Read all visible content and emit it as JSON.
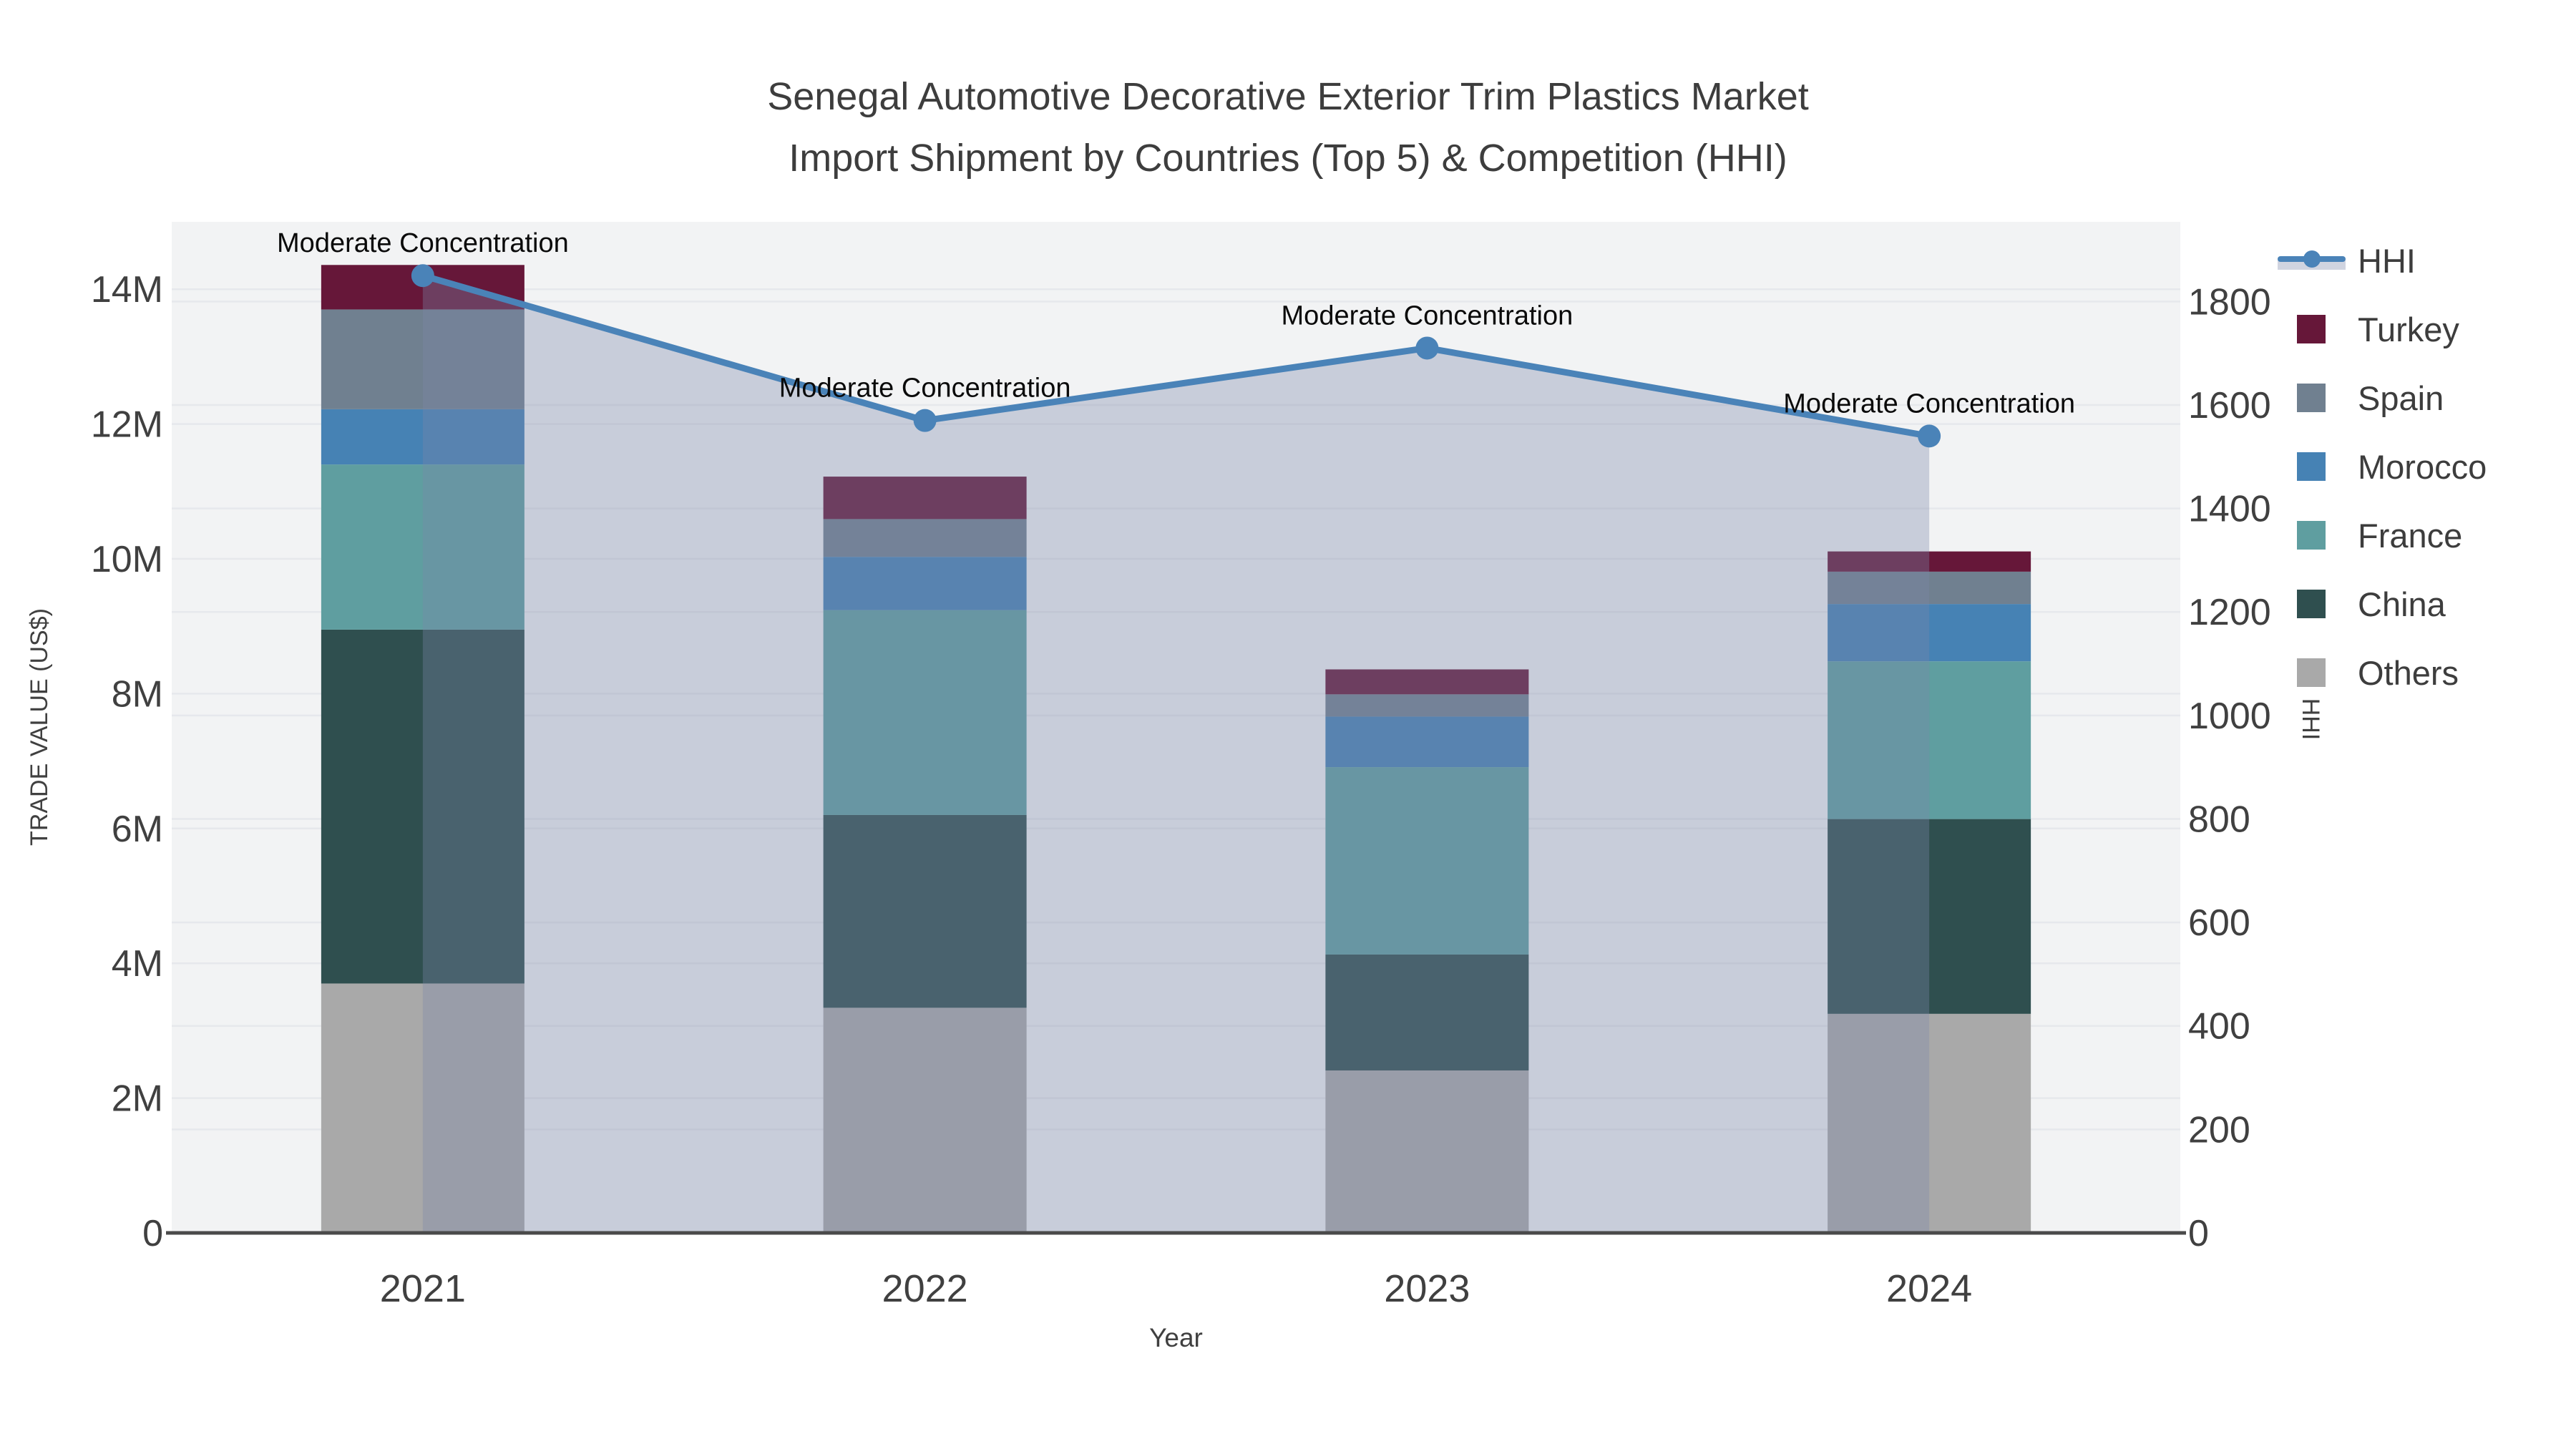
{
  "figure": {
    "title_line1": "Senegal Automotive Decorative Exterior Trim Plastics Market",
    "title_line2": "Import Shipment by Countries (Top 5) & Competition (HHI)"
  },
  "chart_data": {
    "type": "bar",
    "subtype": "stacked-bar-with-line-area",
    "title": "Senegal Automotive Decorative Exterior Trim Plastics Market Import Shipment by Countries (Top 5) & Competition (HHI)",
    "xlabel": "Year",
    "ylabel": "TRADE VALUE (US$)",
    "y2label": "HHI",
    "categories": [
      "2021",
      "2022",
      "2023",
      "2024"
    ],
    "value_axis": {
      "min": 0,
      "max": 15,
      "unit": "M US$",
      "tick_values": [
        0,
        2,
        4,
        6,
        8,
        10,
        12,
        14
      ],
      "tick_labels": [
        "0",
        "2M",
        "4M",
        "6M",
        "8M",
        "10M",
        "12M",
        "14M"
      ]
    },
    "hhi_axis": {
      "min": 0,
      "max": 1954,
      "tick_values": [
        0,
        200,
        400,
        600,
        800,
        1000,
        1200,
        1400,
        1600,
        1800
      ],
      "tick_labels": [
        "0",
        "200",
        "400",
        "600",
        "800",
        "1000",
        "1200",
        "1400",
        "1600",
        "1800"
      ]
    },
    "series": [
      {
        "name": "Others",
        "color": "#A9A9A9",
        "values_musd": [
          3.7,
          3.34,
          2.41,
          3.25
        ]
      },
      {
        "name": "China",
        "color": "#2F4F4F",
        "values_musd": [
          5.25,
          2.86,
          1.72,
          2.89
        ]
      },
      {
        "name": "France",
        "color": "#5F9EA0",
        "values_musd": [
          2.45,
          3.04,
          2.78,
          2.34
        ]
      },
      {
        "name": "Morocco",
        "color": "#4682B4",
        "values_musd": [
          0.82,
          0.79,
          0.75,
          0.85
        ]
      },
      {
        "name": "Spain",
        "color": "#708090",
        "values_musd": [
          1.48,
          0.56,
          0.33,
          0.48
        ]
      },
      {
        "name": "Turkey",
        "color": "#661739",
        "values_musd": [
          0.66,
          0.63,
          0.37,
          0.3
        ]
      }
    ],
    "totals_musd": [
      14.36,
      11.22,
      8.36,
      10.11
    ],
    "hhi_series": {
      "name": "HHI",
      "line_color": "#4a83b8",
      "fill_color": "rgba(122,134,168,0.35)",
      "values": [
        1850,
        1570,
        1710,
        1540
      ]
    },
    "annotations": [
      {
        "year": "2021",
        "text": "Moderate Concentration"
      },
      {
        "year": "2022",
        "text": "Moderate Concentration"
      },
      {
        "year": "2023",
        "text": "Moderate Concentration"
      },
      {
        "year": "2024",
        "text": "Moderate Concentration"
      }
    ],
    "legend": {
      "items": [
        {
          "label": "HHI",
          "type": "line"
        },
        {
          "label": "Turkey",
          "type": "swatch",
          "color": "#661739"
        },
        {
          "label": "Spain",
          "type": "swatch",
          "color": "#708090"
        },
        {
          "label": "Morocco",
          "type": "swatch",
          "color": "#4682B4"
        },
        {
          "label": "France",
          "type": "swatch",
          "color": "#5F9EA0"
        },
        {
          "label": "China",
          "type": "swatch",
          "color": "#2F4F4F"
        },
        {
          "label": "Others",
          "type": "swatch",
          "color": "#A9A9A9"
        }
      ],
      "position": "right"
    },
    "style": {
      "plot_bg": "#f2f3f4",
      "gridline": "#e6e8ec",
      "axis_line": "#4a4a4a",
      "text_color": "#404040",
      "annotation_color": "#0a0a0a",
      "grid_on": true
    }
  }
}
